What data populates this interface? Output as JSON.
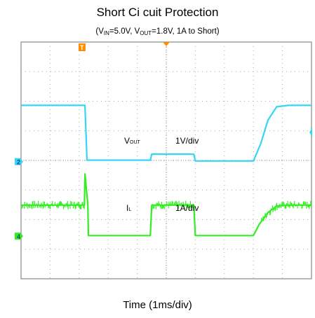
{
  "chart_data": {
    "type": "line",
    "title": "Short Ci cuit Protection",
    "subtitle": {
      "p1": "(V",
      "vin_sub": "IN",
      "p2": "=5.0V, V",
      "vout_sub": "OUT",
      "p3": "=1.8V, 1A to Short)"
    },
    "xlabel": "Time (1ms/div)",
    "x_divisions": 10,
    "y_divisions": 8,
    "grid": true,
    "trigger_marker": "T",
    "channels": [
      {
        "id": "vout",
        "marker": "2",
        "color": "#33d6f5",
        "label_main": "V",
        "label_sub": "OUT",
        "scale": "1V/div",
        "zero_div_from_top": 4.04,
        "t_div": [
          0,
          2.2,
          2.27,
          4.45,
          4.5,
          5.95,
          6.0,
          8.0,
          8.25,
          8.5,
          8.8,
          9.2,
          10
        ],
        "value_div": [
          1.9,
          1.9,
          0.05,
          0.05,
          0.25,
          0.25,
          0.02,
          0.02,
          0.6,
          1.4,
          1.85,
          1.9,
          1.9
        ]
      },
      {
        "id": "il",
        "marker": "4",
        "color": "#33ee22",
        "label_main": "I",
        "label_sub": "L",
        "scale": "1A/div",
        "zero_div_from_top": 6.56,
        "t_div": [
          0,
          2.18,
          2.2,
          2.3,
          2.32,
          4.45,
          4.5,
          5.95,
          6.0,
          8.0,
          8.2,
          8.5,
          8.8,
          9.2,
          10
        ],
        "value_div": [
          1.05,
          1.05,
          2.1,
          1.05,
          0.02,
          0.02,
          1.05,
          1.05,
          0.02,
          0.02,
          0.4,
          0.8,
          1.02,
          1.05,
          1.05
        ],
        "noise_div": 0.15
      }
    ]
  }
}
